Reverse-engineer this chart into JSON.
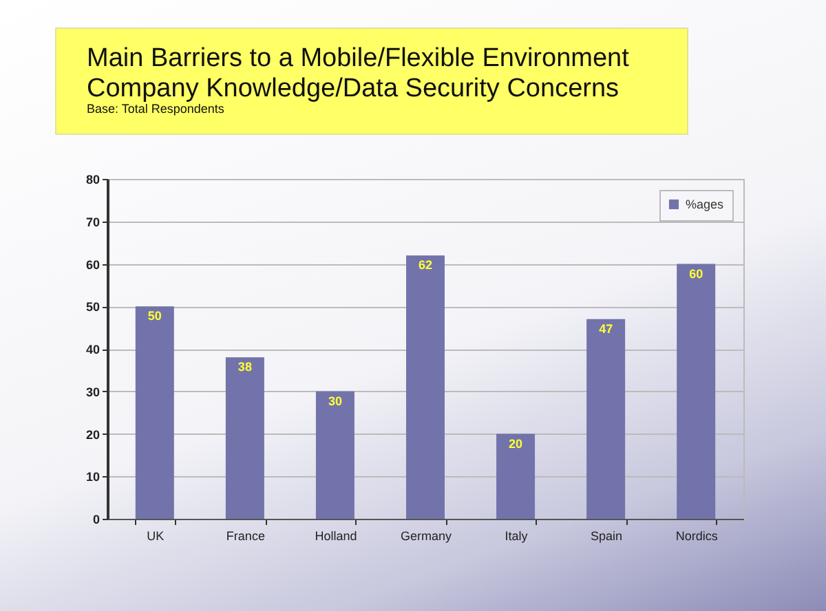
{
  "chart_data": {
    "type": "bar",
    "title": "Main Barriers to a Mobile/Flexible Environment\nCompany Knowledge/Data Security Concerns",
    "subtitle": "Base: Total Respondents",
    "categories": [
      "UK",
      "France",
      "Holland",
      "Germany",
      "Italy",
      "Spain",
      "Nordics"
    ],
    "series": [
      {
        "name": "%ages",
        "color": "#7373ab",
        "values": [
          50,
          38,
          30,
          62,
          20,
          47,
          60
        ]
      }
    ],
    "ylim": [
      0,
      80
    ],
    "yticks": [
      0,
      10,
      20,
      30,
      40,
      50,
      60,
      70,
      80
    ],
    "grid": "y",
    "legend": "top right",
    "data_labels": true
  }
}
